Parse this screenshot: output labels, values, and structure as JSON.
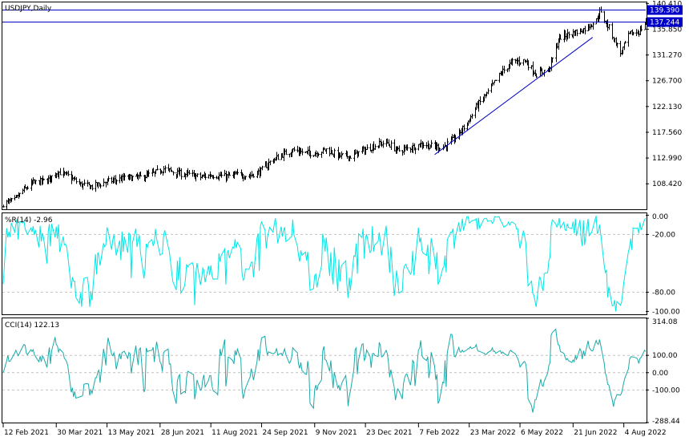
{
  "chart_data": [
    {
      "type": "bar",
      "subtype": "ohlc",
      "title": "USDJPY,Daily",
      "y_ticks": [
        "140.410",
        "135.850",
        "131.270",
        "126.700",
        "122.130",
        "117.560",
        "112.990",
        "108.420"
      ],
      "ylim": [
        103.9,
        140.6
      ],
      "price_lines": [
        {
          "value": 139.39,
          "label": "139.390",
          "color": "#0000c8"
        },
        {
          "value": 137.244,
          "label": "137.244",
          "color": "#0000c8"
        }
      ],
      "trendline": {
        "from": {
          "date": "2022-02-21",
          "price": 113.6
        },
        "to": {
          "date": "2022-07-08",
          "price": 134.4
        },
        "color": "#0000c8"
      },
      "close_path": [
        [
          "2021-02-12",
          104.9
        ],
        [
          "2021-02-22",
          105.5
        ],
        [
          "2021-03-01",
          107.2
        ],
        [
          "2021-03-10",
          108.6
        ],
        [
          "2021-03-22",
          109.0
        ],
        [
          "2021-03-31",
          110.6
        ],
        [
          "2021-04-09",
          109.8
        ],
        [
          "2021-04-20",
          108.3
        ],
        [
          "2021-04-30",
          107.9
        ],
        [
          "2021-05-11",
          108.7
        ],
        [
          "2021-05-20",
          109.1
        ],
        [
          "2021-06-01",
          109.5
        ],
        [
          "2021-06-11",
          109.6
        ],
        [
          "2021-06-22",
          110.2
        ],
        [
          "2021-07-01",
          111.1
        ],
        [
          "2021-07-12",
          110.3
        ],
        [
          "2021-07-22",
          110.1
        ],
        [
          "2021-08-02",
          109.6
        ],
        [
          "2021-08-12",
          110.0
        ],
        [
          "2021-08-23",
          109.7
        ],
        [
          "2021-09-02",
          110.0
        ],
        [
          "2021-09-13",
          109.9
        ],
        [
          "2021-09-22",
          110.5
        ],
        [
          "2021-10-01",
          112.3
        ],
        [
          "2021-10-12",
          113.6
        ],
        [
          "2021-10-21",
          114.4
        ],
        [
          "2021-11-01",
          113.9
        ],
        [
          "2021-11-10",
          113.9
        ],
        [
          "2021-11-19",
          114.5
        ],
        [
          "2021-11-30",
          113.4
        ],
        [
          "2021-12-10",
          113.3
        ],
        [
          "2021-12-21",
          114.3
        ],
        [
          "2021-12-31",
          115.2
        ],
        [
          "2022-01-10",
          115.8
        ],
        [
          "2022-01-20",
          114.3
        ],
        [
          "2022-02-01",
          114.9
        ],
        [
          "2022-02-10",
          115.5
        ],
        [
          "2022-02-21",
          115.0
        ],
        [
          "2022-03-01",
          115.0
        ],
        [
          "2022-03-10",
          116.4
        ],
        [
          "2022-03-21",
          119.2
        ],
        [
          "2022-03-30",
          122.4
        ],
        [
          "2022-04-08",
          124.6
        ],
        [
          "2022-04-20",
          128.2
        ],
        [
          "2022-04-29",
          130.0
        ],
        [
          "2022-05-10",
          130.3
        ],
        [
          "2022-05-20",
          127.9
        ],
        [
          "2022-05-31",
          128.7
        ],
        [
          "2022-06-09",
          134.4
        ],
        [
          "2022-06-20",
          135.1
        ],
        [
          "2022-06-30",
          135.8
        ],
        [
          "2022-07-11",
          137.4
        ],
        [
          "2022-07-14",
          138.9
        ],
        [
          "2022-07-22",
          136.1
        ],
        [
          "2022-08-01",
          131.6
        ],
        [
          "2022-08-09",
          135.0
        ],
        [
          "2022-08-17",
          135.4
        ],
        [
          "2022-08-23",
          137.2
        ]
      ],
      "time_axis": [
        "12 Feb 2021",
        "30 Mar 2021",
        "13 May 2021",
        "28 Jun 2021",
        "11 Aug 2021",
        "24 Sep 2021",
        "9 Nov 2021",
        "23 Dec 2021",
        "7 Feb 2022",
        "23 Mar 2022",
        "6 May 2022",
        "21 Jun 2022",
        "4 Aug 2022"
      ],
      "time_axis_dates": [
        "2021-02-12",
        "2021-03-30",
        "2021-05-13",
        "2021-06-28",
        "2021-08-11",
        "2021-09-24",
        "2021-11-09",
        "2021-12-23",
        "2022-02-07",
        "2022-03-23",
        "2022-05-06",
        "2022-06-21",
        "2022-08-04"
      ]
    },
    {
      "type": "line",
      "title": "%R(14) -2.96",
      "series": [
        {
          "name": "%R(14)",
          "color": "#00e6e6",
          "last_value": -2.96
        }
      ],
      "y_ticks": [
        "0.00",
        "-20.00",
        "-80.00",
        "-100.00"
      ],
      "levels": [
        -20,
        -80
      ],
      "ylim": [
        -103,
        2
      ]
    },
    {
      "type": "line",
      "title": "CCI(14) 122.13",
      "series": [
        {
          "name": "CCI(14)",
          "color": "#1aaaaa",
          "last_value": 122.13
        }
      ],
      "y_ticks": [
        "314.08",
        "100.00",
        "0.00",
        "-100.00",
        "-288.44"
      ],
      "levels": [
        100,
        0,
        -100
      ],
      "ylim": [
        -288.44,
        314.08
      ]
    }
  ],
  "colors": {
    "background": "#ffffff",
    "grid": "#c0c0c0",
    "candle": "#000000",
    "wpr": "#00e6e6",
    "cci": "#1aaaaa",
    "line": "#0000c8"
  }
}
